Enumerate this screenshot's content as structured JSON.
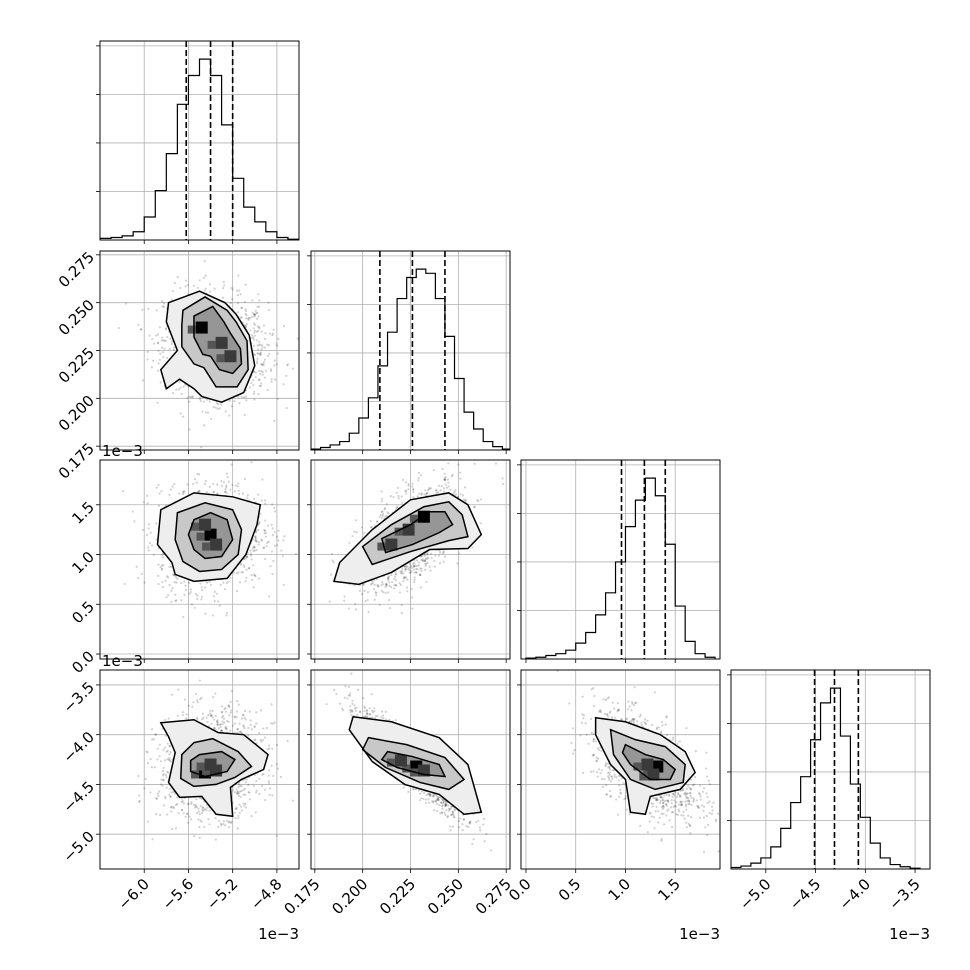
{
  "chart_data": {
    "type": "corner",
    "grid": true,
    "parameters": [
      {
        "range": [
          -6.4,
          -4.6
        ],
        "ticks": [
          -6.0,
          -5.6,
          -5.2,
          -4.8
        ],
        "tick_labels": [
          "−6.0",
          "−5.6",
          "−5.2",
          "−4.8"
        ],
        "offset_label": "1e−3"
      },
      {
        "range": [
          0.173,
          0.277
        ],
        "ticks": [
          0.175,
          0.2,
          0.225,
          0.25,
          0.275
        ],
        "tick_labels": [
          "0.175",
          "0.200",
          "0.225",
          "0.250",
          "0.275"
        ],
        "offset_label": ""
      },
      {
        "range": [
          -0.05,
          1.95
        ],
        "ticks": [
          0.0,
          0.5,
          1.0,
          1.5
        ],
        "tick_labels": [
          "0.0",
          "0.5",
          "1.0",
          "1.5"
        ],
        "offset_label": "1e−3"
      },
      {
        "range": [
          -5.35,
          -3.35
        ],
        "ticks": [
          -5.0,
          -4.5,
          -4.0,
          -3.5
        ],
        "tick_labels": [
          "−5.0",
          "−4.5",
          "−4.0",
          "−3.5"
        ],
        "offset_label": "1e−3"
      }
    ],
    "histograms": [
      {
        "bin_edges": [
          -6.4,
          -6.3,
          -6.2,
          -6.1,
          -6.0,
          -5.9,
          -5.8,
          -5.7,
          -5.6,
          -5.5,
          -5.4,
          -5.3,
          -5.2,
          -5.1,
          -5.0,
          -4.9,
          -4.8,
          -4.7,
          -4.6
        ],
        "counts": [
          2,
          3,
          5,
          10,
          28,
          60,
          105,
          165,
          200,
          220,
          200,
          140,
          75,
          40,
          22,
          10,
          3,
          1
        ],
        "quantiles": [
          -5.62,
          -5.4,
          -5.2
        ]
      },
      {
        "bin_edges": [
          0.173,
          0.178,
          0.183,
          0.188,
          0.193,
          0.198,
          0.203,
          0.208,
          0.213,
          0.218,
          0.223,
          0.228,
          0.233,
          0.238,
          0.243,
          0.248,
          0.253,
          0.258,
          0.263,
          0.268,
          0.273,
          0.277
        ],
        "counts": [
          1,
          3,
          6,
          10,
          20,
          38,
          62,
          100,
          140,
          180,
          205,
          215,
          210,
          180,
          135,
          85,
          45,
          25,
          10,
          4,
          1
        ],
        "quantiles": [
          0.209,
          0.226,
          0.243
        ]
      },
      {
        "bin_edges": [
          0.0,
          0.1,
          0.2,
          0.3,
          0.4,
          0.5,
          0.6,
          0.7,
          0.8,
          0.9,
          1.0,
          1.1,
          1.2,
          1.3,
          1.4,
          1.5,
          1.6,
          1.7,
          1.8,
          1.9
        ],
        "counts": [
          1,
          2,
          4,
          6,
          10,
          18,
          30,
          50,
          75,
          110,
          150,
          180,
          205,
          185,
          130,
          60,
          20,
          6,
          2
        ],
        "quantiles": [
          0.96,
          1.19,
          1.4
        ]
      },
      {
        "bin_edges": [
          -5.35,
          -5.25,
          -5.15,
          -5.05,
          -4.95,
          -4.85,
          -4.75,
          -4.65,
          -4.55,
          -4.45,
          -4.35,
          -4.25,
          -4.15,
          -4.05,
          -3.95,
          -3.85,
          -3.75,
          -3.65,
          -3.55,
          -3.45
        ],
        "counts": [
          2,
          4,
          8,
          15,
          30,
          55,
          90,
          125,
          175,
          225,
          245,
          180,
          115,
          70,
          35,
          15,
          6,
          3,
          1
        ],
        "quantiles": [
          -4.51,
          -4.31,
          -4.07
        ]
      }
    ],
    "pairs": [
      {
        "x": 0,
        "y": 1,
        "center": [
          -5.35,
          0.227
        ],
        "rho": -0.15,
        "hotspots": [
          [
            -5.48,
            0.237
          ],
          [
            -5.22,
            0.222
          ],
          [
            -5.3,
            0.229
          ]
        ],
        "contours": [
          [
            [
              -5.55,
              0.243
            ],
            [
              -5.38,
              0.248
            ],
            [
              -5.28,
              0.24
            ],
            [
              -5.22,
              0.234
            ],
            [
              -5.13,
              0.226
            ],
            [
              -5.12,
              0.218
            ],
            [
              -5.2,
              0.213
            ],
            [
              -5.32,
              0.215
            ],
            [
              -5.4,
              0.222
            ],
            [
              -5.47,
              0.223
            ],
            [
              -5.55,
              0.232
            ]
          ],
          [
            [
              -5.65,
              0.246
            ],
            [
              -5.45,
              0.253
            ],
            [
              -5.25,
              0.246
            ],
            [
              -5.17,
              0.24
            ],
            [
              -5.07,
              0.23
            ],
            [
              -5.06,
              0.215
            ],
            [
              -5.16,
              0.206
            ],
            [
              -5.35,
              0.206
            ],
            [
              -5.46,
              0.216
            ],
            [
              -5.55,
              0.218
            ],
            [
              -5.66,
              0.227
            ],
            [
              -5.66,
              0.238
            ]
          ],
          [
            [
              -5.78,
              0.25
            ],
            [
              -5.5,
              0.256
            ],
            [
              -5.27,
              0.25
            ],
            [
              -5.17,
              0.244
            ],
            [
              -5.05,
              0.233
            ],
            [
              -5.0,
              0.217
            ],
            [
              -5.1,
              0.203
            ],
            [
              -5.3,
              0.198
            ],
            [
              -5.48,
              0.201
            ],
            [
              -5.55,
              0.205
            ],
            [
              -5.68,
              0.21
            ],
            [
              -5.8,
              0.205
            ],
            [
              -5.85,
              0.215
            ],
            [
              -5.7,
              0.225
            ],
            [
              -5.8,
              0.24
            ]
          ]
        ]
      },
      {
        "x": 0,
        "y": 2,
        "center": [
          -5.4,
          1.18
        ],
        "rho": 0.1,
        "hotspots": [
          [
            -5.4,
            1.2
          ],
          [
            -5.35,
            1.1
          ],
          [
            -5.45,
            1.3
          ]
        ],
        "contours": [
          [
            [
              -5.55,
              1.35
            ],
            [
              -5.4,
              1.42
            ],
            [
              -5.25,
              1.35
            ],
            [
              -5.2,
              1.15
            ],
            [
              -5.3,
              0.98
            ],
            [
              -5.45,
              0.96
            ],
            [
              -5.55,
              1.05
            ],
            [
              -5.6,
              1.2
            ]
          ],
          [
            [
              -5.7,
              1.42
            ],
            [
              -5.45,
              1.52
            ],
            [
              -5.2,
              1.45
            ],
            [
              -5.12,
              1.25
            ],
            [
              -5.15,
              1.0
            ],
            [
              -5.3,
              0.85
            ],
            [
              -5.5,
              0.83
            ],
            [
              -5.65,
              0.93
            ],
            [
              -5.72,
              1.15
            ]
          ],
          [
            [
              -5.85,
              1.45
            ],
            [
              -5.55,
              1.62
            ],
            [
              -5.2,
              1.58
            ],
            [
              -4.95,
              1.5
            ],
            [
              -4.98,
              1.3
            ],
            [
              -5.08,
              1.0
            ],
            [
              -5.25,
              0.76
            ],
            [
              -5.55,
              0.73
            ],
            [
              -5.72,
              0.8
            ],
            [
              -5.75,
              0.92
            ],
            [
              -5.88,
              1.1
            ]
          ]
        ]
      },
      {
        "x": 0,
        "y": 3,
        "center": [
          -5.4,
          -4.3
        ],
        "rho": 0.1,
        "hotspots": [
          [
            -5.45,
            -4.38
          ],
          [
            -5.35,
            -4.36
          ],
          [
            -5.4,
            -4.3
          ]
        ],
        "contours": [
          [
            [
              -5.5,
              -4.2
            ],
            [
              -5.3,
              -4.17
            ],
            [
              -5.18,
              -4.25
            ],
            [
              -5.25,
              -4.37
            ],
            [
              -5.45,
              -4.42
            ],
            [
              -5.58,
              -4.37
            ],
            [
              -5.58,
              -4.26
            ]
          ],
          [
            [
              -5.55,
              -4.08
            ],
            [
              -5.38,
              -4.04
            ],
            [
              -5.15,
              -4.17
            ],
            [
              -5.03,
              -4.32
            ],
            [
              -5.18,
              -4.43
            ],
            [
              -5.35,
              -4.5
            ],
            [
              -5.55,
              -4.52
            ],
            [
              -5.67,
              -4.44
            ],
            [
              -5.66,
              -4.2
            ]
          ],
          [
            [
              -5.85,
              -3.88
            ],
            [
              -5.55,
              -3.85
            ],
            [
              -5.33,
              -3.98
            ],
            [
              -5.1,
              -4.0
            ],
            [
              -4.88,
              -4.2
            ],
            [
              -4.92,
              -4.35
            ],
            [
              -5.12,
              -4.45
            ],
            [
              -5.22,
              -4.53
            ],
            [
              -5.2,
              -4.82
            ],
            [
              -5.35,
              -4.8
            ],
            [
              -5.48,
              -4.62
            ],
            [
              -5.68,
              -4.63
            ],
            [
              -5.78,
              -4.48
            ],
            [
              -5.72,
              -4.18
            ],
            [
              -5.78,
              -4.02
            ]
          ]
        ]
      },
      {
        "x": 1,
        "y": 2,
        "center": [
          0.225,
          1.18
        ],
        "rho": 0.55,
        "hotspots": [
          [
            0.232,
            1.38
          ],
          [
            0.224,
            1.25
          ],
          [
            0.215,
            1.1
          ]
        ],
        "contours": [
          [
            [
              0.21,
              1.16
            ],
            [
              0.225,
              1.3
            ],
            [
              0.235,
              1.43
            ],
            [
              0.243,
              1.43
            ],
            [
              0.247,
              1.3
            ],
            [
              0.24,
              1.22
            ],
            [
              0.226,
              1.1
            ],
            [
              0.212,
              1.02
            ]
          ],
          [
            [
              0.2,
              1.08
            ],
            [
              0.215,
              1.3
            ],
            [
              0.232,
              1.48
            ],
            [
              0.245,
              1.53
            ],
            [
              0.252,
              1.4
            ],
            [
              0.255,
              1.18
            ],
            [
              0.245,
              1.14
            ],
            [
              0.225,
              1.03
            ],
            [
              0.205,
              0.9
            ]
          ],
          [
            [
              0.188,
              0.92
            ],
            [
              0.205,
              1.25
            ],
            [
              0.225,
              1.55
            ],
            [
              0.245,
              1.62
            ],
            [
              0.255,
              1.5
            ],
            [
              0.262,
              1.2
            ],
            [
              0.255,
              1.06
            ],
            [
              0.235,
              1.05
            ],
            [
              0.215,
              0.82
            ],
            [
              0.198,
              0.7
            ],
            [
              0.185,
              0.73
            ]
          ]
        ]
      },
      {
        "x": 1,
        "y": 3,
        "center": [
          0.226,
          -4.3
        ],
        "rho": -0.9,
        "hotspots": [
          [
            0.228,
            -4.32
          ],
          [
            0.232,
            -4.36
          ],
          [
            0.22,
            -4.26
          ]
        ],
        "contours": [
          [
            [
              0.213,
              -4.17
            ],
            [
              0.226,
              -4.22
            ],
            [
              0.24,
              -4.3
            ],
            [
              0.243,
              -4.42
            ],
            [
              0.232,
              -4.4
            ],
            [
              0.218,
              -4.33
            ],
            [
              0.21,
              -4.25
            ]
          ],
          [
            [
              0.203,
              -4.03
            ],
            [
              0.223,
              -4.1
            ],
            [
              0.243,
              -4.23
            ],
            [
              0.253,
              -4.45
            ],
            [
              0.245,
              -4.55
            ],
            [
              0.23,
              -4.48
            ],
            [
              0.212,
              -4.33
            ],
            [
              0.2,
              -4.15
            ]
          ],
          [
            [
              0.195,
              -3.82
            ],
            [
              0.215,
              -3.87
            ],
            [
              0.24,
              -4.03
            ],
            [
              0.255,
              -4.3
            ],
            [
              0.262,
              -4.78
            ],
            [
              0.253,
              -4.8
            ],
            [
              0.24,
              -4.6
            ],
            [
              0.222,
              -4.5
            ],
            [
              0.205,
              -4.27
            ],
            [
              0.193,
              -3.95
            ]
          ]
        ]
      },
      {
        "x": 2,
        "y": 3,
        "center": [
          1.2,
          -4.3
        ],
        "rho": -0.55,
        "hotspots": [
          [
            1.32,
            -4.32
          ],
          [
            1.22,
            -4.3
          ],
          [
            1.28,
            -4.4
          ]
        ],
        "contours": [
          [
            [
              1.0,
              -4.1
            ],
            [
              1.2,
              -4.2
            ],
            [
              1.38,
              -4.25
            ],
            [
              1.5,
              -4.35
            ],
            [
              1.45,
              -4.45
            ],
            [
              1.25,
              -4.45
            ],
            [
              1.05,
              -4.3
            ],
            [
              0.97,
              -4.18
            ]
          ],
          [
            [
              0.85,
              -3.95
            ],
            [
              1.1,
              -4.05
            ],
            [
              1.4,
              -4.12
            ],
            [
              1.6,
              -4.3
            ],
            [
              1.58,
              -4.48
            ],
            [
              1.3,
              -4.55
            ],
            [
              1.05,
              -4.45
            ],
            [
              0.88,
              -4.2
            ]
          ],
          [
            [
              0.7,
              -3.83
            ],
            [
              1.0,
              -3.87
            ],
            [
              1.35,
              -4.0
            ],
            [
              1.6,
              -4.17
            ],
            [
              1.7,
              -4.38
            ],
            [
              1.55,
              -4.55
            ],
            [
              1.25,
              -4.62
            ],
            [
              1.2,
              -4.8
            ],
            [
              1.05,
              -4.78
            ],
            [
              1.0,
              -4.45
            ],
            [
              0.85,
              -4.3
            ],
            [
              0.7,
              -4.0
            ]
          ]
        ]
      }
    ]
  }
}
